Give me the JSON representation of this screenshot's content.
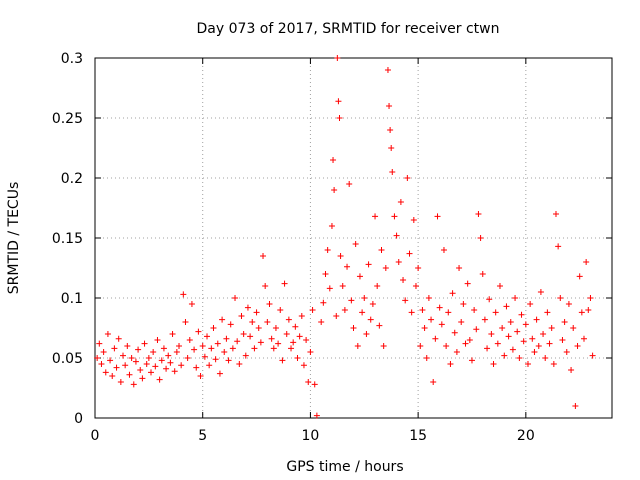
{
  "chart_data": {
    "type": "scatter",
    "title": "Day 073 of 2017, SRMTID for receiver ctwn",
    "xlabel": "GPS time / hours",
    "ylabel": "SRMTID / TECUs",
    "xlim": [
      0,
      24
    ],
    "ylim": [
      0,
      0.3
    ],
    "xticks": [
      0,
      5,
      10,
      15,
      20
    ],
    "xtick_labels": [
      "0",
      "5",
      "10",
      "15",
      "20"
    ],
    "yticks": [
      0,
      0.05,
      0.1,
      0.15,
      0.2,
      0.25,
      0.3
    ],
    "ytick_labels": [
      "0",
      "0.05",
      "0.1",
      "0.15",
      "0.2",
      "0.25",
      "0.3"
    ],
    "grid": true,
    "marker": "+",
    "color": "#ff0000",
    "series": [
      {
        "name": "SRMTID",
        "points": [
          [
            0.1,
            0.05
          ],
          [
            0.2,
            0.062
          ],
          [
            0.3,
            0.045
          ],
          [
            0.4,
            0.055
          ],
          [
            0.5,
            0.038
          ],
          [
            0.6,
            0.07
          ],
          [
            0.7,
            0.048
          ],
          [
            0.8,
            0.035
          ],
          [
            0.9,
            0.058
          ],
          [
            1.0,
            0.042
          ],
          [
            1.1,
            0.066
          ],
          [
            1.2,
            0.03
          ],
          [
            1.3,
            0.052
          ],
          [
            1.4,
            0.044
          ],
          [
            1.5,
            0.06
          ],
          [
            1.6,
            0.036
          ],
          [
            1.7,
            0.05
          ],
          [
            1.8,
            0.028
          ],
          [
            1.9,
            0.047
          ],
          [
            2.0,
            0.057
          ],
          [
            2.1,
            0.04
          ],
          [
            2.2,
            0.033
          ],
          [
            2.3,
            0.062
          ],
          [
            2.4,
            0.045
          ],
          [
            2.5,
            0.05
          ],
          [
            2.6,
            0.038
          ],
          [
            2.7,
            0.055
          ],
          [
            2.8,
            0.043
          ],
          [
            2.9,
            0.065
          ],
          [
            3.0,
            0.032
          ],
          [
            3.1,
            0.048
          ],
          [
            3.2,
            0.058
          ],
          [
            3.3,
            0.041
          ],
          [
            3.4,
            0.052
          ],
          [
            3.5,
            0.046
          ],
          [
            3.6,
            0.07
          ],
          [
            3.7,
            0.039
          ],
          [
            3.8,
            0.055
          ],
          [
            3.9,
            0.06
          ],
          [
            4.0,
            0.044
          ],
          [
            4.1,
            0.103
          ],
          [
            4.2,
            0.08
          ],
          [
            4.3,
            0.05
          ],
          [
            4.4,
            0.065
          ],
          [
            4.5,
            0.095
          ],
          [
            4.6,
            0.057
          ],
          [
            4.7,
            0.042
          ],
          [
            4.8,
            0.072
          ],
          [
            4.9,
            0.035
          ],
          [
            5.0,
            0.06
          ],
          [
            5.1,
            0.051
          ],
          [
            5.2,
            0.068
          ],
          [
            5.3,
            0.044
          ],
          [
            5.4,
            0.058
          ],
          [
            5.5,
            0.075
          ],
          [
            5.6,
            0.049
          ],
          [
            5.7,
            0.062
          ],
          [
            5.8,
            0.037
          ],
          [
            5.9,
            0.082
          ],
          [
            6.0,
            0.055
          ],
          [
            6.1,
            0.066
          ],
          [
            6.2,
            0.048
          ],
          [
            6.3,
            0.078
          ],
          [
            6.4,
            0.058
          ],
          [
            6.5,
            0.1
          ],
          [
            6.6,
            0.064
          ],
          [
            6.7,
            0.045
          ],
          [
            6.8,
            0.085
          ],
          [
            6.9,
            0.07
          ],
          [
            7.0,
            0.052
          ],
          [
            7.1,
            0.092
          ],
          [
            7.2,
            0.068
          ],
          [
            7.3,
            0.08
          ],
          [
            7.4,
            0.058
          ],
          [
            7.5,
            0.088
          ],
          [
            7.6,
            0.075
          ],
          [
            7.7,
            0.063
          ],
          [
            7.8,
            0.135
          ],
          [
            7.9,
            0.11
          ],
          [
            8.0,
            0.08
          ],
          [
            8.1,
            0.095
          ],
          [
            8.2,
            0.066
          ],
          [
            8.3,
            0.058
          ],
          [
            8.4,
            0.075
          ],
          [
            8.5,
            0.062
          ],
          [
            8.6,
            0.09
          ],
          [
            8.7,
            0.048
          ],
          [
            8.8,
            0.112
          ],
          [
            8.9,
            0.07
          ],
          [
            9.0,
            0.082
          ],
          [
            9.1,
            0.058
          ],
          [
            9.2,
            0.063
          ],
          [
            9.3,
            0.076
          ],
          [
            9.4,
            0.05
          ],
          [
            9.5,
            0.068
          ],
          [
            9.6,
            0.085
          ],
          [
            9.7,
            0.044
          ],
          [
            9.8,
            0.065
          ],
          [
            9.9,
            0.03
          ],
          [
            10.0,
            0.055
          ],
          [
            10.1,
            0.09
          ],
          [
            10.2,
            0.028
          ],
          [
            10.3,
            0.002
          ],
          [
            10.5,
            0.08
          ],
          [
            10.6,
            0.096
          ],
          [
            10.7,
            0.12
          ],
          [
            10.8,
            0.14
          ],
          [
            10.9,
            0.108
          ],
          [
            11.0,
            0.16
          ],
          [
            11.05,
            0.215
          ],
          [
            11.1,
            0.19
          ],
          [
            11.2,
            0.085
          ],
          [
            11.25,
            0.3
          ],
          [
            11.3,
            0.264
          ],
          [
            11.35,
            0.25
          ],
          [
            11.4,
            0.135
          ],
          [
            11.5,
            0.11
          ],
          [
            11.6,
            0.09
          ],
          [
            11.7,
            0.126
          ],
          [
            11.8,
            0.195
          ],
          [
            11.9,
            0.098
          ],
          [
            12.0,
            0.075
          ],
          [
            12.1,
            0.145
          ],
          [
            12.2,
            0.06
          ],
          [
            12.3,
            0.118
          ],
          [
            12.4,
            0.088
          ],
          [
            12.5,
            0.1
          ],
          [
            12.6,
            0.07
          ],
          [
            12.7,
            0.128
          ],
          [
            12.8,
            0.082
          ],
          [
            12.9,
            0.095
          ],
          [
            13.0,
            0.168
          ],
          [
            13.1,
            0.11
          ],
          [
            13.2,
            0.077
          ],
          [
            13.3,
            0.14
          ],
          [
            13.4,
            0.06
          ],
          [
            13.5,
            0.125
          ],
          [
            13.6,
            0.29
          ],
          [
            13.65,
            0.26
          ],
          [
            13.7,
            0.24
          ],
          [
            13.75,
            0.225
          ],
          [
            13.8,
            0.205
          ],
          [
            13.9,
            0.168
          ],
          [
            14.0,
            0.152
          ],
          [
            14.1,
            0.13
          ],
          [
            14.2,
            0.18
          ],
          [
            14.3,
            0.115
          ],
          [
            14.4,
            0.098
          ],
          [
            14.5,
            0.2
          ],
          [
            14.6,
            0.137
          ],
          [
            14.7,
            0.088
          ],
          [
            14.8,
            0.165
          ],
          [
            14.9,
            0.11
          ],
          [
            15.0,
            0.125
          ],
          [
            15.1,
            0.06
          ],
          [
            15.2,
            0.09
          ],
          [
            15.3,
            0.075
          ],
          [
            15.4,
            0.05
          ],
          [
            15.5,
            0.1
          ],
          [
            15.6,
            0.082
          ],
          [
            15.7,
            0.03
          ],
          [
            15.8,
            0.066
          ],
          [
            15.9,
            0.168
          ],
          [
            16.0,
            0.092
          ],
          [
            16.1,
            0.078
          ],
          [
            16.2,
            0.14
          ],
          [
            16.3,
            0.06
          ],
          [
            16.4,
            0.088
          ],
          [
            16.5,
            0.045
          ],
          [
            16.6,
            0.104
          ],
          [
            16.7,
            0.071
          ],
          [
            16.8,
            0.055
          ],
          [
            16.9,
            0.125
          ],
          [
            17.0,
            0.08
          ],
          [
            17.1,
            0.095
          ],
          [
            17.2,
            0.062
          ],
          [
            17.3,
            0.112
          ],
          [
            17.4,
            0.065
          ],
          [
            17.5,
            0.048
          ],
          [
            17.6,
            0.09
          ],
          [
            17.7,
            0.074
          ],
          [
            17.8,
            0.17
          ],
          [
            17.9,
            0.15
          ],
          [
            18.0,
            0.12
          ],
          [
            18.1,
            0.082
          ],
          [
            18.2,
            0.058
          ],
          [
            18.3,
            0.099
          ],
          [
            18.4,
            0.07
          ],
          [
            18.5,
            0.045
          ],
          [
            18.6,
            0.088
          ],
          [
            18.7,
            0.062
          ],
          [
            18.8,
            0.11
          ],
          [
            18.9,
            0.075
          ],
          [
            19.0,
            0.052
          ],
          [
            19.1,
            0.093
          ],
          [
            19.2,
            0.068
          ],
          [
            19.3,
            0.08
          ],
          [
            19.4,
            0.057
          ],
          [
            19.5,
            0.1
          ],
          [
            19.6,
            0.072
          ],
          [
            19.7,
            0.05
          ],
          [
            19.8,
            0.086
          ],
          [
            19.9,
            0.064
          ],
          [
            20.0,
            0.078
          ],
          [
            20.1,
            0.045
          ],
          [
            20.2,
            0.095
          ],
          [
            20.3,
            0.066
          ],
          [
            20.4,
            0.055
          ],
          [
            20.5,
            0.082
          ],
          [
            20.6,
            0.06
          ],
          [
            20.7,
            0.105
          ],
          [
            20.8,
            0.07
          ],
          [
            20.9,
            0.05
          ],
          [
            21.0,
            0.088
          ],
          [
            21.1,
            0.062
          ],
          [
            21.2,
            0.075
          ],
          [
            21.3,
            0.045
          ],
          [
            21.4,
            0.17
          ],
          [
            21.5,
            0.143
          ],
          [
            21.6,
            0.1
          ],
          [
            21.7,
            0.065
          ],
          [
            21.8,
            0.08
          ],
          [
            21.9,
            0.055
          ],
          [
            22.0,
            0.095
          ],
          [
            22.1,
            0.04
          ],
          [
            22.2,
            0.075
          ],
          [
            22.3,
            0.01
          ],
          [
            22.4,
            0.06
          ],
          [
            22.5,
            0.118
          ],
          [
            22.6,
            0.088
          ],
          [
            22.7,
            0.066
          ],
          [
            22.8,
            0.13
          ],
          [
            22.9,
            0.09
          ],
          [
            23.0,
            0.1
          ],
          [
            23.1,
            0.052
          ]
        ]
      }
    ]
  }
}
